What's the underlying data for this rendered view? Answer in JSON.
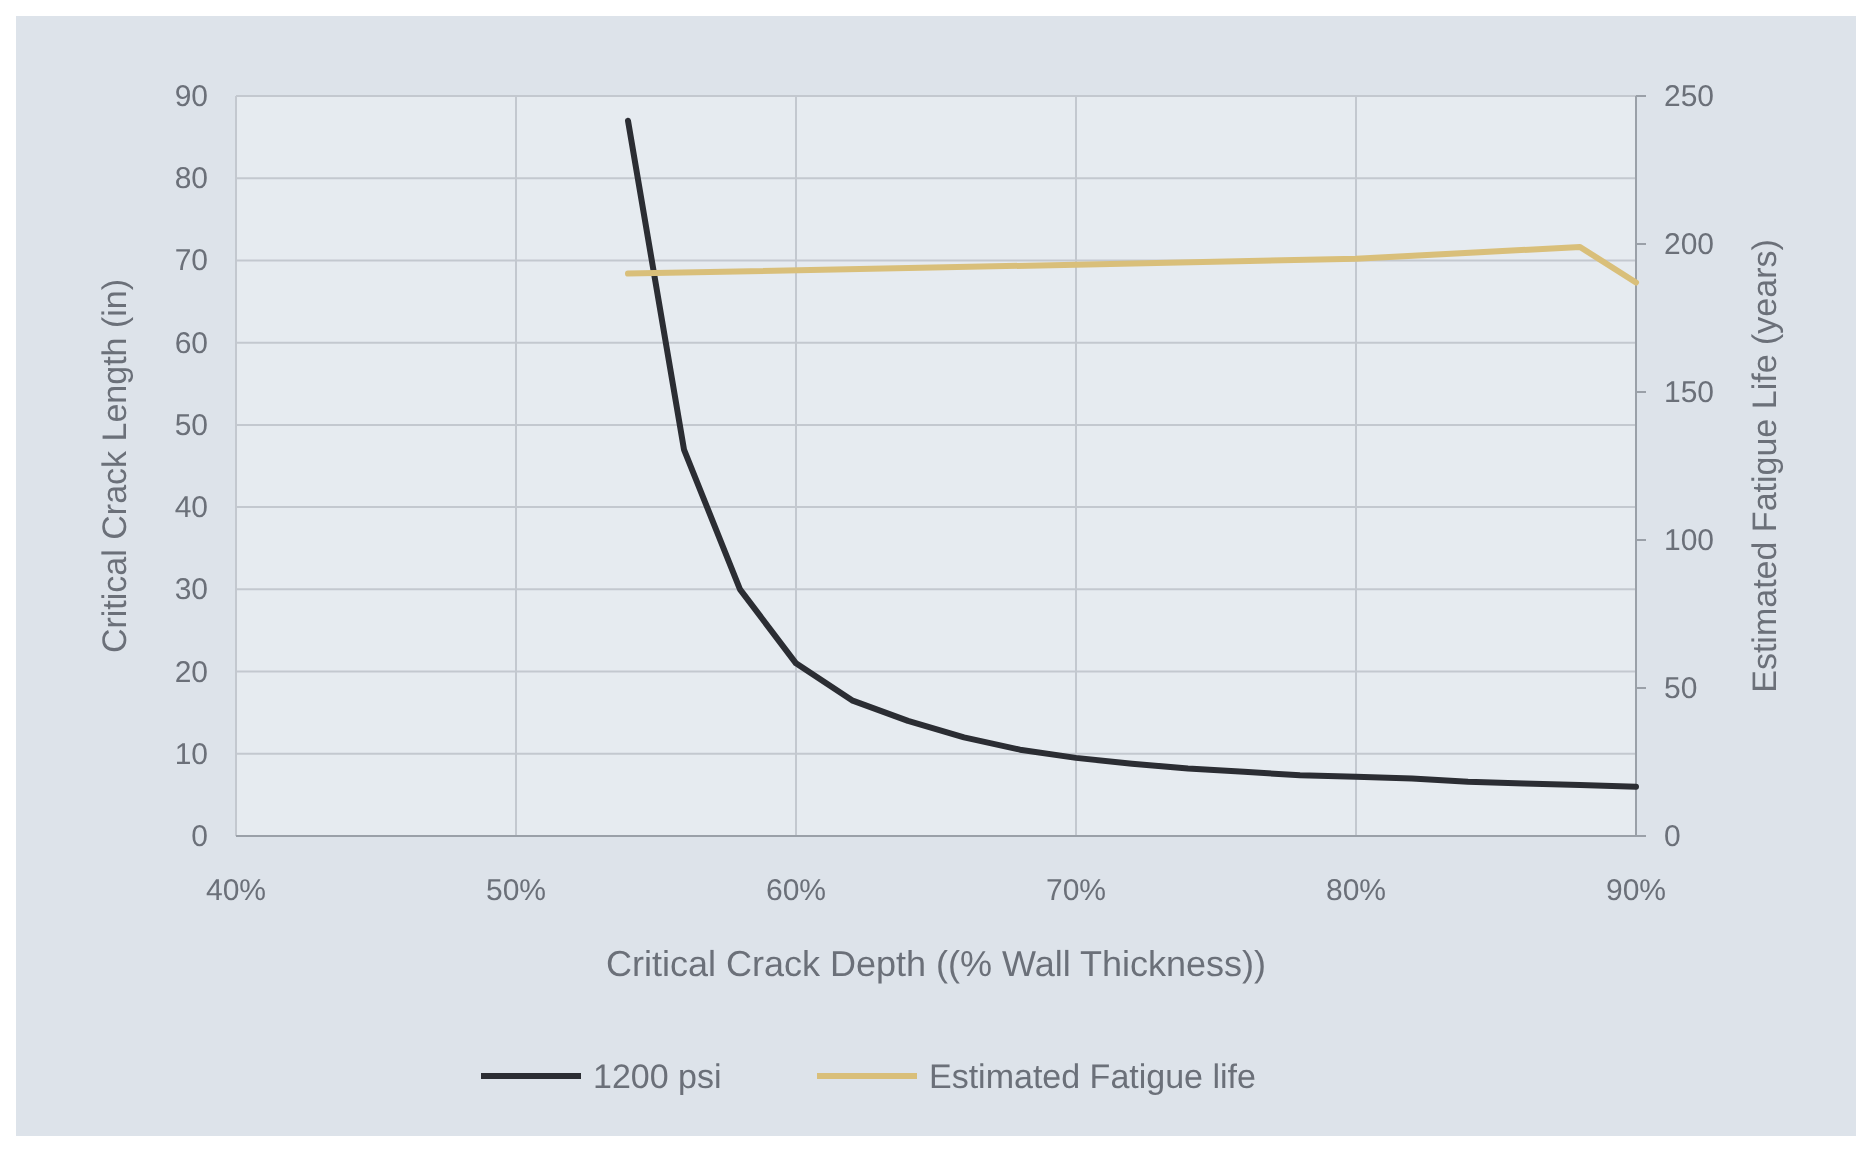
{
  "chart_data": {
    "type": "line",
    "xlabel": "Critical Crack Depth ((% Wall Thickness))",
    "ylabel": "Critical Crack Length (in)",
    "y2label": "Estimated Fatigue Life (years)",
    "x": [
      54,
      56,
      58,
      60,
      62,
      64,
      66,
      68,
      70,
      72,
      74,
      76,
      78,
      80,
      82,
      84,
      86,
      88,
      90
    ],
    "series": [
      {
        "name": "1200 psi",
        "color": "#2b2d33",
        "values": [
          87,
          47,
          30,
          21,
          16.5,
          14,
          12,
          10.5,
          9.5,
          8.8,
          8.2,
          7.8,
          7.4,
          7.2,
          7.0,
          6.6,
          6.4,
          6.2,
          6.0
        ]
      },
      {
        "name": "Estimated Fatigue life",
        "color": "#d9bf7a",
        "axis": "y2",
        "x": [
          54,
          70,
          80,
          88,
          90
        ],
        "values": [
          190,
          193,
          195,
          199,
          187
        ]
      }
    ],
    "xlim": [
      40,
      90
    ],
    "xticks": [
      {
        "value": 40,
        "label": "40%"
      },
      {
        "value": 50,
        "label": "50%"
      },
      {
        "value": 60,
        "label": "60%"
      },
      {
        "value": 70,
        "label": "70%"
      },
      {
        "value": 80,
        "label": "80%"
      },
      {
        "value": 90,
        "label": "90%"
      }
    ],
    "ylim": [
      0,
      90
    ],
    "yticks": [
      0,
      10,
      20,
      30,
      40,
      50,
      60,
      70,
      80,
      90
    ],
    "y2lim": [
      0,
      250
    ],
    "y2ticks": [
      0,
      50,
      100,
      150,
      200,
      250
    ],
    "grid": true,
    "legend": "bottom",
    "line_style": "solid",
    "marker": "none"
  }
}
